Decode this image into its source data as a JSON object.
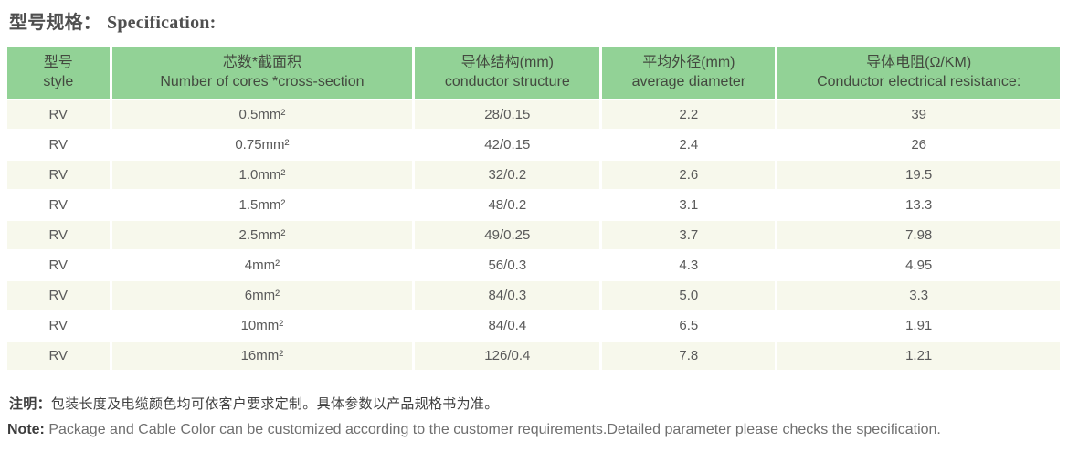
{
  "page": {
    "title_cn": "型号规格：",
    "title_en": "Specification:"
  },
  "table": {
    "columns": [
      {
        "cn": "型号",
        "en": "style"
      },
      {
        "cn": "芯数*截面积",
        "en": "Number of cores *cross-section"
      },
      {
        "cn": "导体结构(mm)",
        "en": "conductor structure"
      },
      {
        "cn": "平均外径(mm)",
        "en": "average diameter"
      },
      {
        "cn": "导体电阻(Ω/KM)",
        "en": "Conductor electrical resistance:"
      }
    ],
    "rows": [
      [
        "RV",
        "0.5mm²",
        "28/0.15",
        "2.2",
        "39"
      ],
      [
        "RV",
        "0.75mm²",
        "42/0.15",
        "2.4",
        "26"
      ],
      [
        "RV",
        "1.0mm²",
        "32/0.2",
        "2.6",
        "19.5"
      ],
      [
        "RV",
        "1.5mm²",
        "48/0.2",
        "3.1",
        "13.3"
      ],
      [
        "RV",
        "2.5mm²",
        "49/0.25",
        "3.7",
        "7.98"
      ],
      [
        "RV",
        "4mm²",
        "56/0.3",
        "4.3",
        "4.95"
      ],
      [
        "RV",
        "6mm²",
        "84/0.3",
        "5.0",
        "3.3"
      ],
      [
        "RV",
        "10mm²",
        "84/0.4",
        "6.5",
        "1.91"
      ],
      [
        "RV",
        "16mm²",
        "126/0.4",
        "7.8",
        "1.21"
      ]
    ]
  },
  "notes": {
    "cn_label": "注明：",
    "cn_text": "包装长度及电缆颜色均可依客户要求定制。具体参数以产品规格书为准。",
    "en_label": "Note:",
    "en_text": " Package and Cable Color can be customized according to the customer requirements.Detailed parameter please checks the specification."
  },
  "colors": {
    "header_bg": "#92d296",
    "row_alt_bg": "#f7f8ec",
    "header_text": "#43493f",
    "body_text": "#5a5a5a",
    "title_text": "#4f4f4f"
  }
}
